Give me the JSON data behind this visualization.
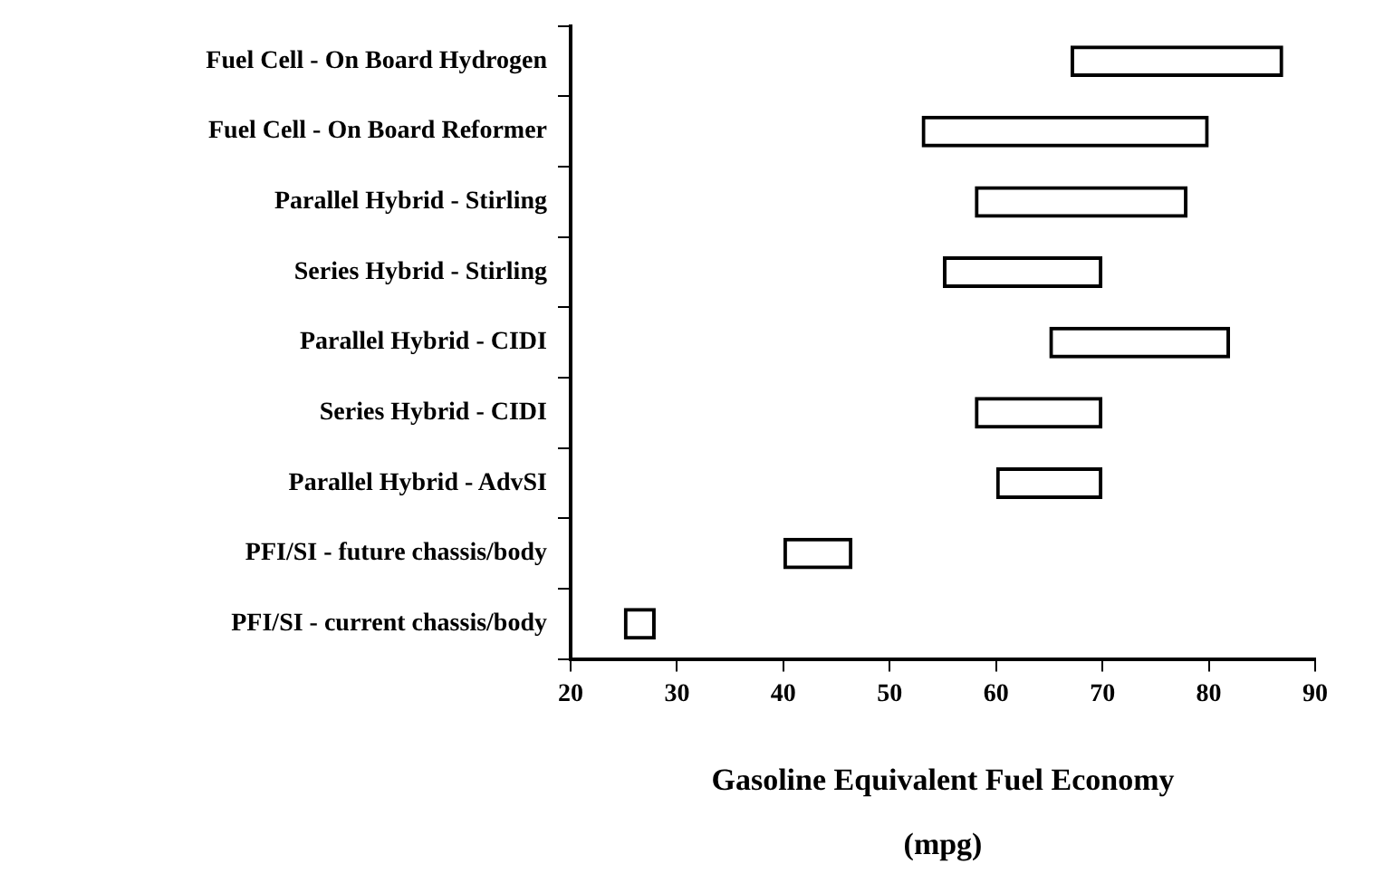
{
  "chart_data": {
    "type": "bar",
    "orientation": "horizontal",
    "xlabel": "Gasoline Equivalent Fuel Economy\n(mpg)",
    "categories": [
      "Fuel Cell - On Board Hydrogen",
      "Fuel Cell - On Board Reformer",
      "Parallel Hybrid - Stirling",
      "Series Hybrid - Stirling",
      "Parallel Hybrid - CIDI",
      "Series Hybrid - CIDI",
      "Parallel Hybrid - AdvSI",
      "PFI/SI - future chassis/body",
      "PFI/SI - current chassis/body"
    ],
    "base": [
      67,
      53,
      58,
      55,
      65,
      58,
      60,
      40,
      25
    ],
    "values": [
      20,
      27,
      20,
      15,
      17,
      12,
      10,
      6.5,
      3
    ],
    "color": "#000000",
    "xlim": [
      20,
      90
    ],
    "xticks": [
      20,
      30,
      40,
      50,
      60,
      70,
      80,
      90
    ],
    "grid": false,
    "legend": false
  }
}
